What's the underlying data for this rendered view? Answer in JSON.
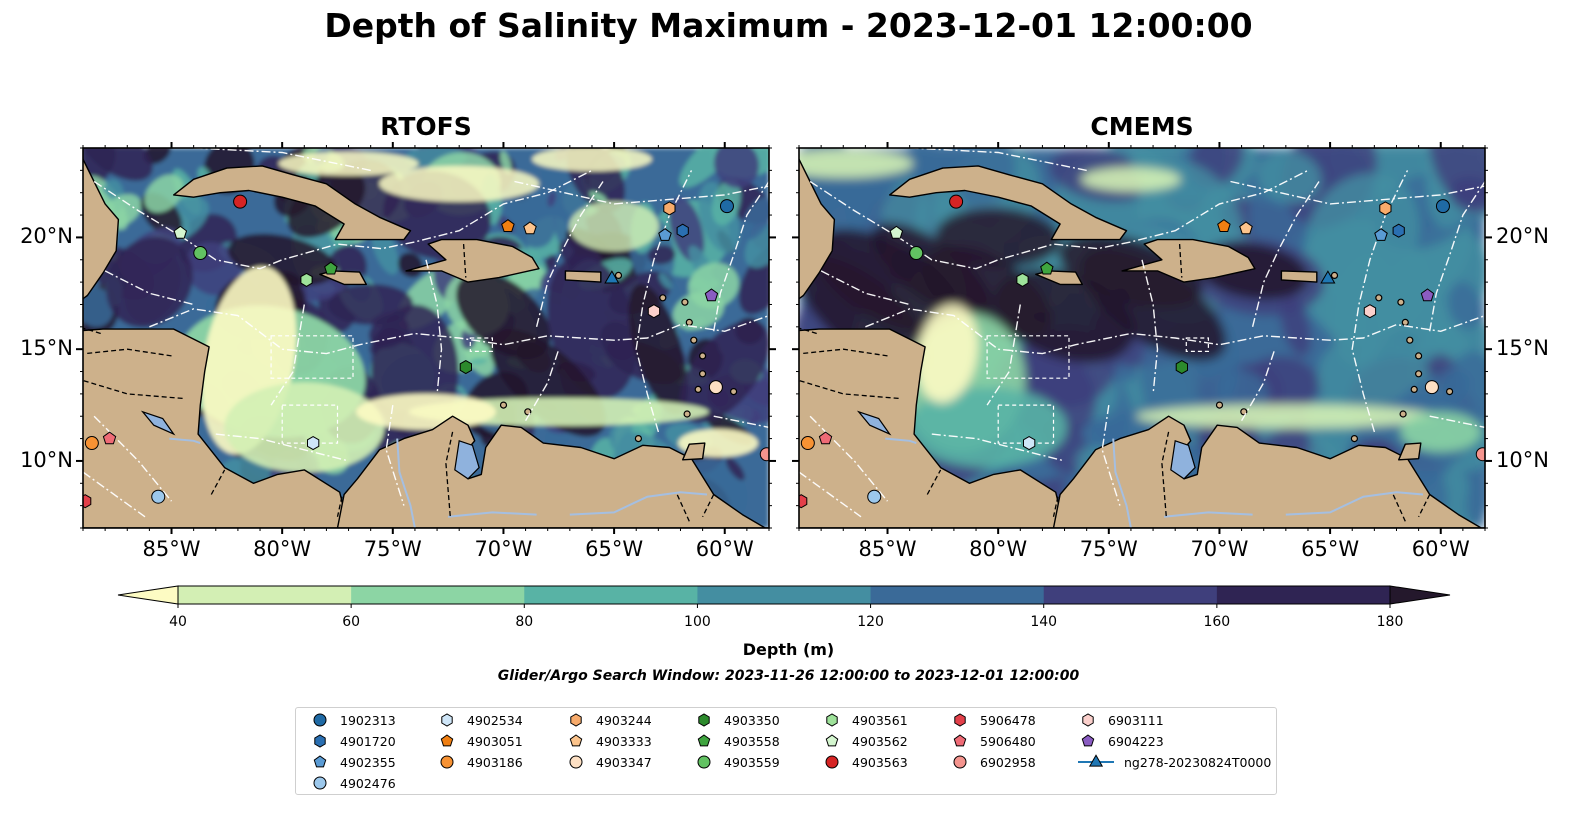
{
  "title": "Depth of Salinity Maximum - 2023-12-01 12:00:00",
  "panels": [
    {
      "subtitle": "RTOFS",
      "variant": "rtofs"
    },
    {
      "subtitle": "CMEMS",
      "variant": "cmems"
    }
  ],
  "axes": {
    "lon_labels": [
      "85°W",
      "80°W",
      "75°W",
      "70°W",
      "65°W",
      "60°W"
    ],
    "lat_labels": [
      "20°N",
      "15°N",
      "10°N"
    ],
    "lon_range": [
      -89,
      -58
    ],
    "lat_range": [
      7,
      24
    ]
  },
  "colorbar": {
    "ticks": [
      "40",
      "60",
      "80",
      "100",
      "120",
      "140",
      "160",
      "180"
    ],
    "label": "Depth (m)",
    "colors": [
      "#fdfbc3",
      "#d3efb4",
      "#8cd5a4",
      "#58b3a5",
      "#448ea1",
      "#3a6a98",
      "#3f3f7c",
      "#2f2453",
      "#24182c"
    ]
  },
  "search_window": "Glider/Argo Search Window: 2023-11-26 12:00:00 to 2023-12-01 12:00:00",
  "land_color": "#cdb18b",
  "legend": [
    {
      "label": "1902313",
      "marker": "circle",
      "color": "#1f6aa5"
    },
    {
      "label": "4901720",
      "marker": "hexagon",
      "color": "#2a6fb2"
    },
    {
      "label": "4902355",
      "marker": "pentagon",
      "color": "#5a9bd4"
    },
    {
      "label": "4902476",
      "marker": "circle",
      "color": "#9cc8ec"
    },
    {
      "label": "4902534",
      "marker": "hexagon",
      "color": "#cfe6f8"
    },
    {
      "label": "4903051",
      "marker": "pentagon",
      "color": "#f07f12"
    },
    {
      "label": "4903186",
      "marker": "circle",
      "color": "#f79233"
    },
    {
      "label": "4903244",
      "marker": "hexagon",
      "color": "#f8ab6b"
    },
    {
      "label": "4903333",
      "marker": "pentagon",
      "color": "#fcc48c"
    },
    {
      "label": "4903347",
      "marker": "circle",
      "color": "#fde0c4"
    },
    {
      "label": "4903350",
      "marker": "hexagon",
      "color": "#2c8a2c"
    },
    {
      "label": "4903558",
      "marker": "pentagon",
      "color": "#3fa53f"
    },
    {
      "label": "4903559",
      "marker": "circle",
      "color": "#62c262"
    },
    {
      "label": "4903561",
      "marker": "hexagon",
      "color": "#9ee29a"
    },
    {
      "label": "4903562",
      "marker": "pentagon",
      "color": "#d4f6cf"
    },
    {
      "label": "4903563",
      "marker": "circle",
      "color": "#d62424"
    },
    {
      "label": "5906478",
      "marker": "hexagon",
      "color": "#e3404a"
    },
    {
      "label": "5906480",
      "marker": "pentagon",
      "color": "#ef6b76"
    },
    {
      "label": "6902958",
      "marker": "circle",
      "color": "#f4948e"
    },
    {
      "label": "6903111",
      "marker": "hexagon",
      "color": "#fbd0cc"
    },
    {
      "label": "6904223",
      "marker": "pentagon",
      "color": "#8a5cc2"
    },
    {
      "label": "ng278-20230824T0000",
      "marker": "triangle",
      "color": "#1f77b4"
    }
  ],
  "floats": [
    {
      "id": "1902313",
      "lon": -59.9,
      "lat": 21.4
    },
    {
      "id": "4901720",
      "lon": -61.9,
      "lat": 20.3
    },
    {
      "id": "4902355",
      "lon": -62.7,
      "lat": 20.1
    },
    {
      "id": "4902476",
      "lon": -85.6,
      "lat": 8.4
    },
    {
      "id": "4902534",
      "lon": -78.6,
      "lat": 10.8
    },
    {
      "id": "4903051",
      "lon": -69.8,
      "lat": 20.5
    },
    {
      "id": "4903186",
      "lon": -88.6,
      "lat": 10.8
    },
    {
      "id": "4903244",
      "lon": -62.5,
      "lat": 21.3
    },
    {
      "id": "4903333",
      "lon": -68.8,
      "lat": 20.4
    },
    {
      "id": "4903347",
      "lon": -60.4,
      "lat": 13.3
    },
    {
      "id": "4903350",
      "lon": -71.7,
      "lat": 14.2
    },
    {
      "id": "4903558",
      "lon": -77.8,
      "lat": 18.6
    },
    {
      "id": "4903559",
      "lon": -83.7,
      "lat": 19.3
    },
    {
      "id": "4903561",
      "lon": -78.9,
      "lat": 18.1
    },
    {
      "id": "4903562",
      "lon": -84.6,
      "lat": 20.2
    },
    {
      "id": "4903563",
      "lon": -81.9,
      "lat": 21.6
    },
    {
      "id": "5906478",
      "lon": -88.9,
      "lat": 8.2
    },
    {
      "id": "5906480",
      "lon": -87.8,
      "lat": 11.0
    },
    {
      "id": "6902958",
      "lon": -58.1,
      "lat": 10.3
    },
    {
      "id": "6903111",
      "lon": -63.2,
      "lat": 16.7
    },
    {
      "id": "6904223",
      "lon": -60.6,
      "lat": 17.4
    },
    {
      "id": "ng278-20230824T0000",
      "lon": -65.1,
      "lat": 18.2
    }
  ]
}
